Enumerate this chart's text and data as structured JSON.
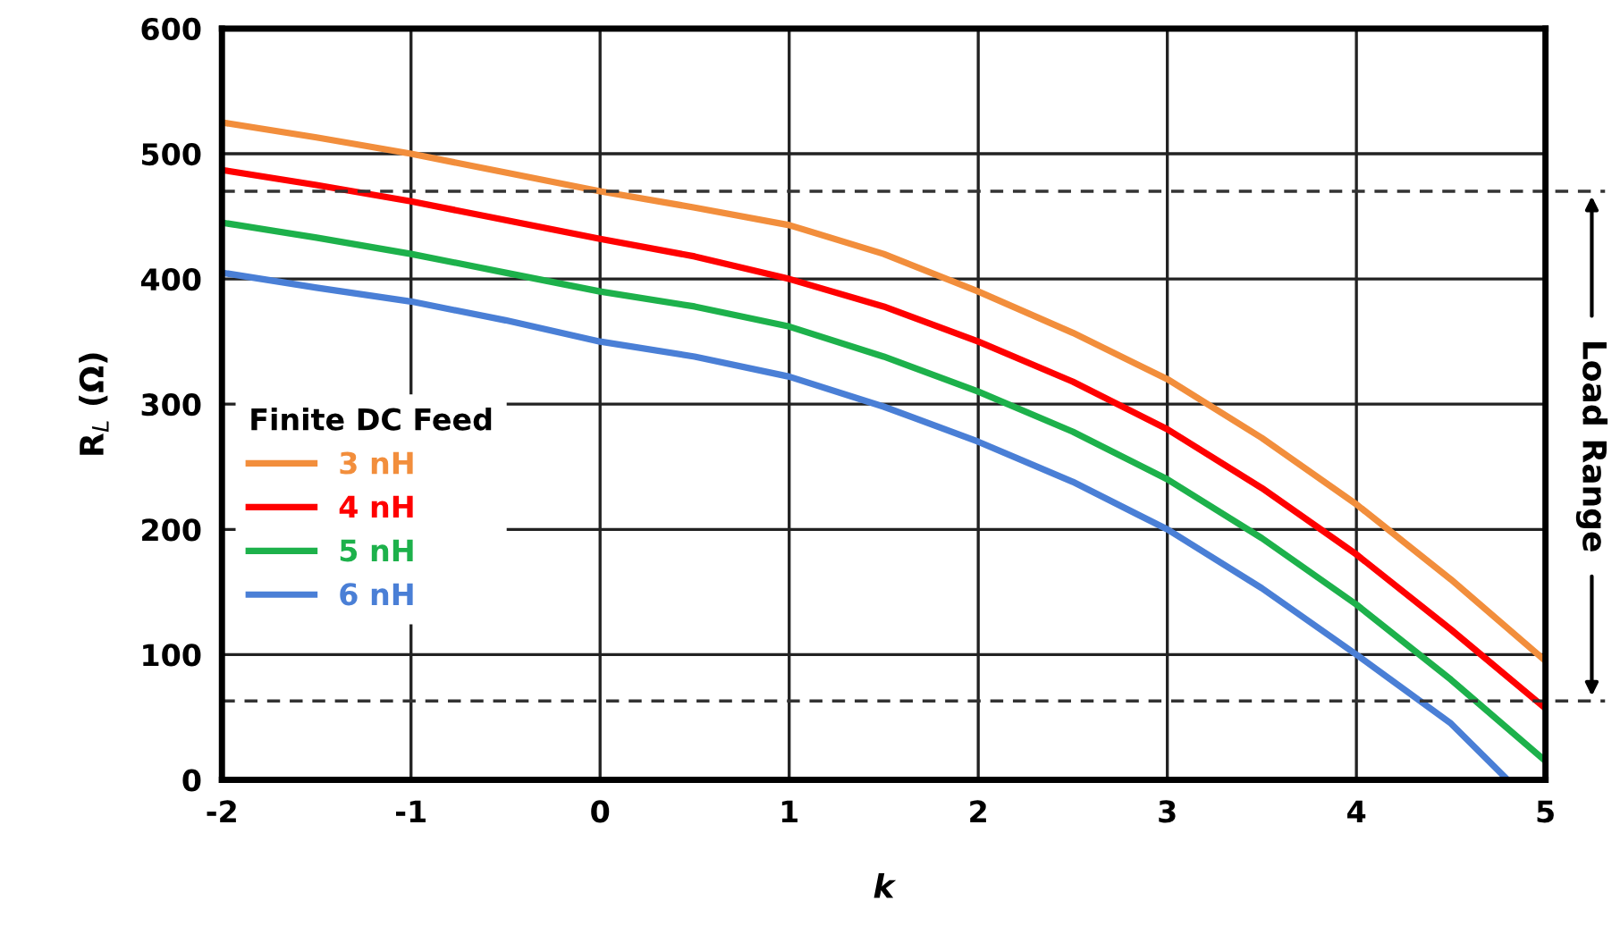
{
  "chart_data": {
    "type": "line",
    "xlabel": "k",
    "ylabel": "R$_{L}$ (Ω)",
    "legend_title": "Finite DC Feed",
    "legend": "left",
    "grid": true,
    "xlim": [
      -2,
      5
    ],
    "ylim": [
      0,
      600
    ],
    "xticks": [
      -2,
      -1,
      0,
      1,
      2,
      3,
      4,
      5
    ],
    "yticks": [
      0,
      100,
      200,
      300,
      400,
      500,
      600
    ],
    "x": [
      -2,
      -1.5,
      -1,
      -0.5,
      0,
      0.5,
      1,
      1.5,
      2,
      2.5,
      3,
      3.5,
      4,
      4.5,
      5
    ],
    "series": [
      {
        "name": "3 nH",
        "color": "#f28e3c",
        "values": [
          525,
          513,
          500,
          485,
          470,
          457,
          443,
          420,
          390,
          357,
          320,
          273,
          220,
          160,
          95
        ]
      },
      {
        "name": "4 nH",
        "color": "#ff0000",
        "values": [
          487,
          475,
          462,
          447,
          432,
          418,
          400,
          378,
          350,
          318,
          280,
          233,
          180,
          120,
          57
        ]
      },
      {
        "name": "5 nH",
        "color": "#1db14b",
        "values": [
          445,
          433,
          420,
          405,
          390,
          378,
          362,
          338,
          310,
          278,
          240,
          193,
          140,
          80,
          15
        ]
      },
      {
        "name": "6 nH",
        "color": "#4a7fd6",
        "x": [
          -2,
          -1.5,
          -1,
          -0.5,
          0,
          0.5,
          1,
          1.5,
          2,
          2.5,
          3,
          3.5,
          4,
          4.5,
          4.8
        ],
        "values": [
          405,
          393,
          382,
          367,
          350,
          338,
          322,
          298,
          270,
          238,
          200,
          153,
          100,
          45,
          0
        ]
      }
    ],
    "ref_lines": [
      {
        "axis": "y",
        "value": 470,
        "line_style": "dashed",
        "color": "#333333"
      },
      {
        "axis": "y",
        "value": 63,
        "line_style": "dashed",
        "color": "#333333"
      }
    ],
    "annotations": [
      "Load Range"
    ]
  }
}
